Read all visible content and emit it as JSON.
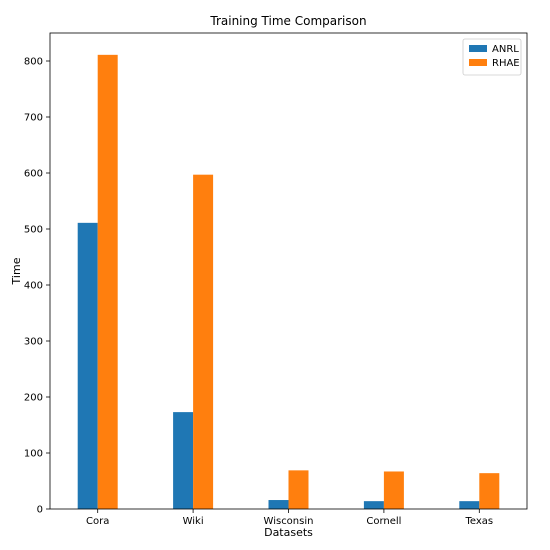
{
  "chart_data": {
    "type": "bar",
    "title": "Training Time Comparison",
    "xlabel": "Datasets",
    "ylabel": "Time",
    "categories": [
      "Cora",
      "Wiki",
      "Wisconsin",
      "Cornell",
      "Texas"
    ],
    "series": [
      {
        "name": "ANRL",
        "color": "#1f77b4",
        "values": [
          511,
          173,
          16,
          14,
          14
        ]
      },
      {
        "name": "RHAE",
        "color": "#ff7f0e",
        "values": [
          811,
          597,
          69,
          67,
          64
        ]
      }
    ],
    "ylim": [
      0,
      850
    ],
    "yticks": [
      0,
      100,
      200,
      300,
      400,
      500,
      600,
      700,
      800
    ],
    "legend_position": "top-right",
    "grid": false
  }
}
